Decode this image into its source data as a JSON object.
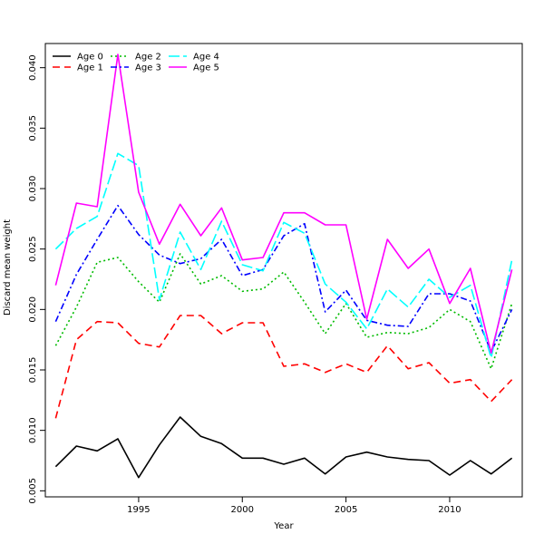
{
  "chart_data": {
    "type": "line",
    "title": "",
    "xlabel": "Year",
    "ylabel": "Discard mean weight",
    "xlim": [
      1990.5,
      2013.5
    ],
    "ylim": [
      0.0045,
      0.042
    ],
    "x_ticks": [
      1995,
      2000,
      2005,
      2010
    ],
    "y_ticks": [
      0.005,
      0.01,
      0.015,
      0.02,
      0.025,
      0.03,
      0.035,
      0.04
    ],
    "y_tick_labels": [
      "0.005",
      "0.010",
      "0.015",
      "0.020",
      "0.025",
      "0.030",
      "0.035",
      "0.040"
    ],
    "x_tick_labels": [
      "1995",
      "2000",
      "2005",
      "2010"
    ],
    "legend_position": "top-left",
    "x": [
      1991,
      1992,
      1993,
      1994,
      1995,
      1996,
      1997,
      1998,
      1999,
      2000,
      2001,
      2002,
      2003,
      2004,
      2005,
      2006,
      2007,
      2008,
      2009,
      2010,
      2011,
      2012,
      2013
    ],
    "series": [
      {
        "name": "Age 0",
        "color": "#000000",
        "dash": "",
        "values": [
          0.007,
          0.0087,
          0.0083,
          0.0093,
          0.0061,
          0.0088,
          0.0111,
          0.0095,
          0.0089,
          0.0077,
          0.0077,
          0.0072,
          0.0077,
          0.0064,
          0.0078,
          0.0082,
          0.0078,
          0.0076,
          0.0075,
          0.0063,
          0.0075,
          0.0064,
          0.0077
        ]
      },
      {
        "name": "Age 1",
        "color": "#ff0000",
        "dash": "8,5",
        "values": [
          0.011,
          0.0175,
          0.019,
          0.0189,
          0.0172,
          0.0169,
          0.0195,
          0.0195,
          0.018,
          0.0189,
          0.0189,
          0.0153,
          0.0155,
          0.0148,
          0.0155,
          0.0148,
          0.017,
          0.0151,
          0.0156,
          0.0139,
          0.0142,
          0.0124,
          0.0142
        ]
      },
      {
        "name": "Age 2",
        "color": "#00bb00",
        "dash": "2,3",
        "values": [
          0.017,
          0.0202,
          0.0239,
          0.0243,
          0.0223,
          0.0206,
          0.0246,
          0.0221,
          0.0228,
          0.0215,
          0.0217,
          0.0231,
          0.0206,
          0.018,
          0.0205,
          0.0177,
          0.0181,
          0.018,
          0.0185,
          0.02,
          0.019,
          0.0151,
          0.0205
        ]
      },
      {
        "name": "Age 3",
        "color": "#0000ff",
        "dash": "7,3,2,3",
        "values": [
          0.019,
          0.0229,
          0.0258,
          0.0286,
          0.0262,
          0.0245,
          0.0238,
          0.0242,
          0.0258,
          0.0228,
          0.0233,
          0.0261,
          0.0271,
          0.0198,
          0.0216,
          0.0191,
          0.0187,
          0.0186,
          0.0213,
          0.0213,
          0.0207,
          0.0165,
          0.02
        ]
      },
      {
        "name": "Age 4",
        "color": "#00ffff",
        "dash": "12,4",
        "values": [
          0.025,
          0.0267,
          0.0277,
          0.0329,
          0.0319,
          0.0208,
          0.0264,
          0.0233,
          0.0273,
          0.0237,
          0.0232,
          0.0272,
          0.0263,
          0.0221,
          0.0206,
          0.0184,
          0.0217,
          0.0202,
          0.0225,
          0.021,
          0.022,
          0.016,
          0.0241
        ]
      },
      {
        "name": "Age 5",
        "color": "#ff00ff",
        "dash": "",
        "values": [
          0.022,
          0.0288,
          0.0285,
          0.0411,
          0.0297,
          0.0254,
          0.0287,
          0.0261,
          0.0284,
          0.0241,
          0.0243,
          0.028,
          0.028,
          0.027,
          0.027,
          0.0192,
          0.0258,
          0.0234,
          0.025,
          0.0205,
          0.0234,
          0.0164,
          0.0233
        ]
      }
    ]
  }
}
